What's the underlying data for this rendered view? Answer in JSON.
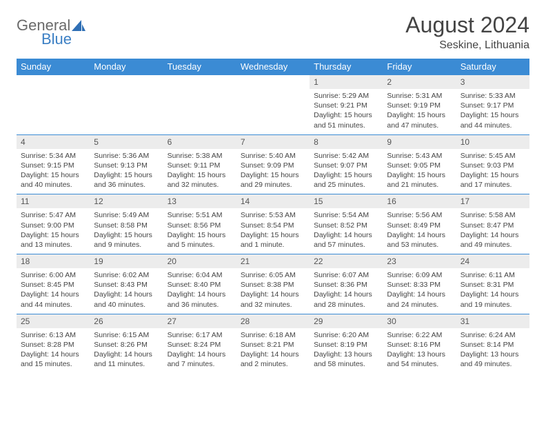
{
  "logo": {
    "word1": "General",
    "word2": "Blue",
    "icon_color": "#2f6fb5"
  },
  "title": "August 2024",
  "location": "Seskine, Lithuania",
  "colors": {
    "header_bg": "#3b8bd4",
    "header_text": "#ffffff",
    "daynum_bg": "#ececec",
    "border": "#3b8bd4",
    "body_text": "#444444",
    "logo_gray": "#6a6a6a",
    "logo_blue": "#3b7fc4"
  },
  "day_headers": [
    "Sunday",
    "Monday",
    "Tuesday",
    "Wednesday",
    "Thursday",
    "Friday",
    "Saturday"
  ],
  "weeks": [
    {
      "nums": [
        "",
        "",
        "",
        "",
        "1",
        "2",
        "3"
      ],
      "cells": [
        "",
        "",
        "",
        "",
        "Sunrise: 5:29 AM\nSunset: 9:21 PM\nDaylight: 15 hours and 51 minutes.",
        "Sunrise: 5:31 AM\nSunset: 9:19 PM\nDaylight: 15 hours and 47 minutes.",
        "Sunrise: 5:33 AM\nSunset: 9:17 PM\nDaylight: 15 hours and 44 minutes."
      ]
    },
    {
      "nums": [
        "4",
        "5",
        "6",
        "7",
        "8",
        "9",
        "10"
      ],
      "cells": [
        "Sunrise: 5:34 AM\nSunset: 9:15 PM\nDaylight: 15 hours and 40 minutes.",
        "Sunrise: 5:36 AM\nSunset: 9:13 PM\nDaylight: 15 hours and 36 minutes.",
        "Sunrise: 5:38 AM\nSunset: 9:11 PM\nDaylight: 15 hours and 32 minutes.",
        "Sunrise: 5:40 AM\nSunset: 9:09 PM\nDaylight: 15 hours and 29 minutes.",
        "Sunrise: 5:42 AM\nSunset: 9:07 PM\nDaylight: 15 hours and 25 minutes.",
        "Sunrise: 5:43 AM\nSunset: 9:05 PM\nDaylight: 15 hours and 21 minutes.",
        "Sunrise: 5:45 AM\nSunset: 9:03 PM\nDaylight: 15 hours and 17 minutes."
      ]
    },
    {
      "nums": [
        "11",
        "12",
        "13",
        "14",
        "15",
        "16",
        "17"
      ],
      "cells": [
        "Sunrise: 5:47 AM\nSunset: 9:00 PM\nDaylight: 15 hours and 13 minutes.",
        "Sunrise: 5:49 AM\nSunset: 8:58 PM\nDaylight: 15 hours and 9 minutes.",
        "Sunrise: 5:51 AM\nSunset: 8:56 PM\nDaylight: 15 hours and 5 minutes.",
        "Sunrise: 5:53 AM\nSunset: 8:54 PM\nDaylight: 15 hours and 1 minute.",
        "Sunrise: 5:54 AM\nSunset: 8:52 PM\nDaylight: 14 hours and 57 minutes.",
        "Sunrise: 5:56 AM\nSunset: 8:49 PM\nDaylight: 14 hours and 53 minutes.",
        "Sunrise: 5:58 AM\nSunset: 8:47 PM\nDaylight: 14 hours and 49 minutes."
      ]
    },
    {
      "nums": [
        "18",
        "19",
        "20",
        "21",
        "22",
        "23",
        "24"
      ],
      "cells": [
        "Sunrise: 6:00 AM\nSunset: 8:45 PM\nDaylight: 14 hours and 44 minutes.",
        "Sunrise: 6:02 AM\nSunset: 8:43 PM\nDaylight: 14 hours and 40 minutes.",
        "Sunrise: 6:04 AM\nSunset: 8:40 PM\nDaylight: 14 hours and 36 minutes.",
        "Sunrise: 6:05 AM\nSunset: 8:38 PM\nDaylight: 14 hours and 32 minutes.",
        "Sunrise: 6:07 AM\nSunset: 8:36 PM\nDaylight: 14 hours and 28 minutes.",
        "Sunrise: 6:09 AM\nSunset: 8:33 PM\nDaylight: 14 hours and 24 minutes.",
        "Sunrise: 6:11 AM\nSunset: 8:31 PM\nDaylight: 14 hours and 19 minutes."
      ]
    },
    {
      "nums": [
        "25",
        "26",
        "27",
        "28",
        "29",
        "30",
        "31"
      ],
      "cells": [
        "Sunrise: 6:13 AM\nSunset: 8:28 PM\nDaylight: 14 hours and 15 minutes.",
        "Sunrise: 6:15 AM\nSunset: 8:26 PM\nDaylight: 14 hours and 11 minutes.",
        "Sunrise: 6:17 AM\nSunset: 8:24 PM\nDaylight: 14 hours and 7 minutes.",
        "Sunrise: 6:18 AM\nSunset: 8:21 PM\nDaylight: 14 hours and 2 minutes.",
        "Sunrise: 6:20 AM\nSunset: 8:19 PM\nDaylight: 13 hours and 58 minutes.",
        "Sunrise: 6:22 AM\nSunset: 8:16 PM\nDaylight: 13 hours and 54 minutes.",
        "Sunrise: 6:24 AM\nSunset: 8:14 PM\nDaylight: 13 hours and 49 minutes."
      ]
    }
  ]
}
